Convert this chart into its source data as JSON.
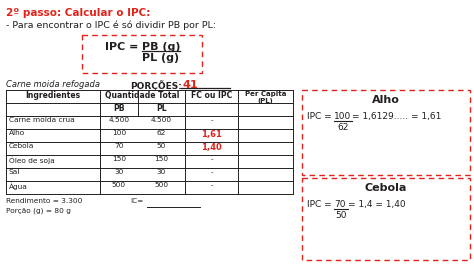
{
  "title_line1": "2º passo: Calcular o IPC:",
  "title_line2": "- Para encontrar o IPC é só dividir PB por PL:",
  "recipe_title": "Carne moida refogada",
  "porcoes_label": "PORÇÕES:",
  "porcoes_value": "41",
  "rows": [
    [
      "Carne moida crua",
      "4.500",
      "4.500",
      "-",
      ""
    ],
    [
      "Alho",
      "100",
      "62",
      "1,61",
      ""
    ],
    [
      "Cebola",
      "70",
      "50",
      "1,40",
      ""
    ],
    [
      "Óleo de soja",
      "150",
      "150",
      "-",
      ""
    ],
    [
      "Sal",
      "30",
      "30",
      "-",
      ""
    ],
    [
      "Água",
      "500",
      "500",
      "-",
      ""
    ]
  ],
  "footer_line1": "Rendimento = 3.300",
  "footer_line2": "Porção (g) = 80 g",
  "footer_ic": "IC=",
  "box1_title": "Alho",
  "box2_title": "Cebola",
  "red_color": "#e2231a",
  "black_color": "#231f20",
  "bg_color": "#ffffff"
}
